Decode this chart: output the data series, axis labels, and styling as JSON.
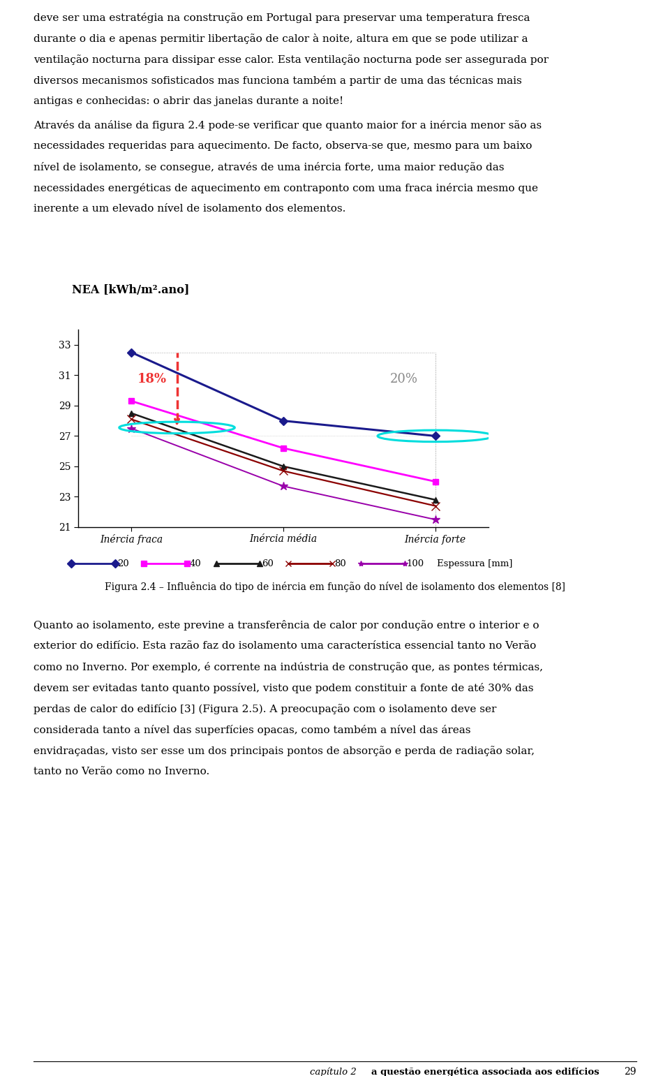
{
  "fig_width": 9.6,
  "fig_height": 15.41,
  "bg_color": "#ffffff",
  "ylabel": "NEA [kWh/m².ano]",
  "x_labels": [
    "Inércia fraca",
    "Inércia média",
    "Inércia forte"
  ],
  "yticks": [
    21,
    23,
    25,
    27,
    29,
    31,
    33
  ],
  "ylim": [
    21,
    34
  ],
  "series_20": [
    32.5,
    28.0,
    27.0
  ],
  "series_40": [
    29.3,
    26.2,
    24.0
  ],
  "series_60": [
    28.5,
    25.0,
    22.8
  ],
  "series_80": [
    28.1,
    24.7,
    22.4
  ],
  "series_100": [
    27.5,
    23.7,
    21.5
  ],
  "color_20": "#1a1a8c",
  "color_40": "#FF00FF",
  "color_60": "#1a1a1a",
  "color_80": "#8B0000",
  "color_100": "#9900AA",
  "pct18": "18%",
  "pct20": "20%",
  "legend_suffix": "Espessura [mm]",
  "caption": "Figura 2.4 – Influência do tipo de inércia em função do nível de isolamento dos elementos [8]",
  "footer_italic": "capítulo 2 ",
  "footer_bold": "a questão energética associada aos edifícios",
  "page_num": "29",
  "para1": "deve ser uma estratégia na construção em Portugal para preservar uma temperatura fresca durante o dia e apenas permitir libertação de calor à noite, altura em que se pode utilizar a ventilação nocturna para dissipar esse calor. Esta ventilação nocturna pode ser assegurada por diversos mecanismos sofisticados mas funciona também a partir de uma das técnicas mais antigas e conhecidas: o abrir das janelas durante a noite!",
  "para2": "Através da análise da figura 2.4 pode-se verificar que quanto maior for a inércia menor são as necessidades requeridas para aquecimento. De facto, observa-se que, mesmo para um baixo nível de isolamento, se consegue, através de uma inércia forte, uma maior redução das necessidades energéticas de aquecimento em contraponto com uma fraca inércia mesmo que inerente a um elevado nível de isolamento dos elementos.",
  "para3": "Quanto ao isolamento, este previne a transferência de calor por condução entre o interior e o exterior do edifício. Esta razão faz do isolamento uma característica essencial tanto no Verão como no Inverno. Por exemplo, é corrente na indústria de construção que, as pontes térmicas, devem ser evitadas tanto quanto possível, visto que podem constituir a fonte de até 30% das perdas de calor do edifício [3] (Figura 2.5). A preocupação com o isolamento deve ser considerada tanto a nível das superfícies opacas, como também a nível das áreas envidraçadas, visto ser esse um dos principais pontos de absorção e perda de radiação solar, tanto no Verão como no Inverno."
}
